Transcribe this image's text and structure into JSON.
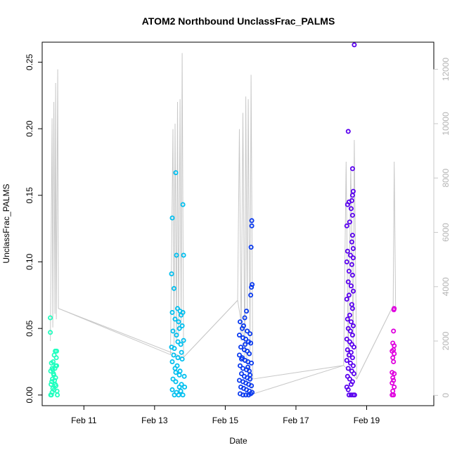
{
  "chart_data": {
    "type": "scatter",
    "title": "ATOM2 Northbound UnclassFrac_PALMS",
    "xlabel": "Date",
    "ylabel": "UnclassFrac_PALMS",
    "x_unit": "day (February 2017 calendar day)",
    "xlim": [
      9.82,
      20.9
    ],
    "ylim": [
      -0.008,
      0.265
    ],
    "xticks": [
      {
        "value": 11,
        "label": "Feb 11"
      },
      {
        "value": 13,
        "label": "Feb 13"
      },
      {
        "value": 15,
        "label": "Feb 15"
      },
      {
        "value": 17,
        "label": "Feb 17"
      },
      {
        "value": 19,
        "label": "Feb 19"
      }
    ],
    "yticks": [
      {
        "value": 0.0,
        "label": "0.00"
      },
      {
        "value": 0.05,
        "label": "0.05"
      },
      {
        "value": 0.1,
        "label": "0.10"
      },
      {
        "value": 0.15,
        "label": "0.15"
      },
      {
        "value": 0.2,
        "label": "0.20"
      },
      {
        "value": 0.25,
        "label": "0.25"
      }
    ],
    "secondary_y": {
      "lim": [
        -380,
        13000
      ],
      "ticks": [
        {
          "value": 0,
          "label": "0"
        },
        {
          "value": 2000,
          "label": "2000"
        },
        {
          "value": 4000,
          "label": "4000"
        },
        {
          "value": 6000,
          "label": "6000"
        },
        {
          "value": 8000,
          "label": "8000"
        },
        {
          "value": 10000,
          "label": "10000"
        },
        {
          "value": 12000,
          "label": "12000"
        }
      ],
      "color": "#c8c8c8"
    },
    "grid": false,
    "altitude_trace": [
      [
        10.05,
        2000
      ],
      [
        10.1,
        10200
      ],
      [
        10.12,
        2500
      ],
      [
        10.15,
        10800
      ],
      [
        10.18,
        3000
      ],
      [
        10.2,
        11500
      ],
      [
        10.22,
        2800
      ],
      [
        10.26,
        12000
      ],
      [
        10.28,
        3200
      ],
      [
        13.45,
        1500
      ],
      [
        13.52,
        9800
      ],
      [
        13.55,
        1800
      ],
      [
        13.58,
        10000
      ],
      [
        13.62,
        2000
      ],
      [
        13.65,
        10800
      ],
      [
        13.68,
        2200
      ],
      [
        13.72,
        10900
      ],
      [
        13.75,
        2500
      ],
      [
        13.78,
        12600
      ],
      [
        13.82,
        1400
      ],
      [
        15.35,
        3500
      ],
      [
        15.4,
        9800
      ],
      [
        15.45,
        2000
      ],
      [
        15.5,
        10400
      ],
      [
        15.55,
        1200
      ],
      [
        15.58,
        11000
      ],
      [
        15.62,
        3000
      ],
      [
        15.65,
        10900
      ],
      [
        15.7,
        1500
      ],
      [
        15.73,
        11800
      ],
      [
        15.78,
        600
      ],
      [
        18.35,
        1100
      ],
      [
        18.42,
        8600
      ],
      [
        18.48,
        1200
      ],
      [
        18.55,
        8400
      ],
      [
        18.62,
        1800
      ],
      [
        18.65,
        9400
      ],
      [
        18.72,
        600
      ],
      [
        19.75,
        3300
      ],
      [
        19.78,
        8600
      ],
      [
        19.82,
        3200
      ]
    ],
    "transit_lines": [
      [
        10.28,
        3200
      ],
      [
        13.82,
        1400
      ],
      [
        15.35,
        3500
      ],
      [
        15.78,
        50
      ],
      [
        18.35,
        1100
      ],
      [
        18.72,
        600
      ],
      [
        19.75,
        3300
      ]
    ],
    "series": [
      {
        "color": "#1fffbf",
        "points": [
          [
            10.05,
            0.058
          ],
          [
            10.05,
            0.047
          ],
          [
            10.08,
            0.0
          ],
          [
            10.1,
            0.002
          ],
          [
            10.12,
            0.005
          ],
          [
            10.07,
            0.008
          ],
          [
            10.09,
            0.01
          ],
          [
            10.11,
            0.012
          ],
          [
            10.15,
            0.015
          ],
          [
            10.06,
            0.018
          ],
          [
            10.18,
            0.02
          ],
          [
            10.2,
            0.022
          ],
          [
            10.13,
            0.025
          ],
          [
            10.22,
            0.028
          ],
          [
            10.16,
            0.03
          ],
          [
            10.19,
            0.033
          ],
          [
            10.23,
            0.033
          ],
          [
            10.1,
            0.02
          ],
          [
            10.14,
            0.016
          ],
          [
            10.17,
            0.011
          ],
          [
            10.21,
            0.007
          ],
          [
            10.24,
            0.003
          ],
          [
            10.08,
            0.024
          ],
          [
            10.12,
            0.019
          ],
          [
            10.25,
            0.0
          ],
          [
            10.2,
            0.013
          ],
          [
            10.16,
            0.004
          ],
          [
            10.23,
            0.022
          ],
          [
            10.06,
            0.0
          ],
          [
            10.19,
            0.008
          ]
        ]
      },
      {
        "color": "#00bfef",
        "points": [
          [
            13.5,
            0.133
          ],
          [
            13.6,
            0.167
          ],
          [
            13.8,
            0.143
          ],
          [
            13.62,
            0.105
          ],
          [
            13.82,
            0.105
          ],
          [
            13.48,
            0.091
          ],
          [
            13.55,
            0.08
          ],
          [
            13.5,
            0.062
          ],
          [
            13.65,
            0.065
          ],
          [
            13.72,
            0.063
          ],
          [
            13.58,
            0.057
          ],
          [
            13.68,
            0.055
          ],
          [
            13.75,
            0.06
          ],
          [
            13.8,
            0.062
          ],
          [
            13.52,
            0.048
          ],
          [
            13.62,
            0.045
          ],
          [
            13.7,
            0.05
          ],
          [
            13.78,
            0.052
          ],
          [
            13.48,
            0.036
          ],
          [
            13.56,
            0.035
          ],
          [
            13.66,
            0.04
          ],
          [
            13.74,
            0.038
          ],
          [
            13.82,
            0.041
          ],
          [
            13.5,
            0.025
          ],
          [
            13.58,
            0.02
          ],
          [
            13.64,
            0.022
          ],
          [
            13.72,
            0.018
          ],
          [
            13.78,
            0.027
          ],
          [
            13.52,
            0.012
          ],
          [
            13.6,
            0.01
          ],
          [
            13.7,
            0.015
          ],
          [
            13.76,
            0.008
          ],
          [
            13.84,
            0.014
          ],
          [
            13.5,
            0.004
          ],
          [
            13.56,
            0.0
          ],
          [
            13.62,
            0.002
          ],
          [
            13.68,
            0.0
          ],
          [
            13.74,
            0.003
          ],
          [
            13.8,
            0.0
          ],
          [
            13.85,
            0.006
          ],
          [
            13.54,
            0.03
          ],
          [
            13.66,
            0.028
          ],
          [
            13.76,
            0.032
          ],
          [
            13.6,
            0.017
          ],
          [
            13.7,
            0.006
          ]
        ]
      },
      {
        "color": "#0a3aef",
        "points": [
          [
            15.75,
            0.131
          ],
          [
            15.75,
            0.127
          ],
          [
            15.73,
            0.111
          ],
          [
            15.76,
            0.083
          ],
          [
            15.74,
            0.081
          ],
          [
            15.72,
            0.075
          ],
          [
            15.6,
            0.063
          ],
          [
            15.55,
            0.058
          ],
          [
            15.52,
            0.052
          ],
          [
            15.42,
            0.055
          ],
          [
            15.48,
            0.05
          ],
          [
            15.62,
            0.048
          ],
          [
            15.7,
            0.046
          ],
          [
            15.4,
            0.045
          ],
          [
            15.5,
            0.043
          ],
          [
            15.58,
            0.042
          ],
          [
            15.66,
            0.04
          ],
          [
            15.72,
            0.039
          ],
          [
            15.44,
            0.036
          ],
          [
            15.54,
            0.034
          ],
          [
            15.62,
            0.033
          ],
          [
            15.68,
            0.031
          ],
          [
            15.4,
            0.03
          ],
          [
            15.48,
            0.028
          ],
          [
            15.56,
            0.026
          ],
          [
            15.64,
            0.025
          ],
          [
            15.74,
            0.024
          ],
          [
            15.42,
            0.022
          ],
          [
            15.5,
            0.02
          ],
          [
            15.6,
            0.019
          ],
          [
            15.68,
            0.018
          ],
          [
            15.46,
            0.016
          ],
          [
            15.54,
            0.014
          ],
          [
            15.62,
            0.013
          ],
          [
            15.7,
            0.012
          ],
          [
            15.4,
            0.011
          ],
          [
            15.5,
            0.01
          ],
          [
            15.58,
            0.009
          ],
          [
            15.66,
            0.008
          ],
          [
            15.74,
            0.007
          ],
          [
            15.44,
            0.006
          ],
          [
            15.52,
            0.005
          ],
          [
            15.6,
            0.004
          ],
          [
            15.68,
            0.003
          ],
          [
            15.76,
            0.002
          ],
          [
            15.42,
            0.001
          ],
          [
            15.5,
            0.0
          ],
          [
            15.58,
            0.0
          ],
          [
            15.66,
            0.0
          ],
          [
            15.72,
            0.001
          ],
          [
            15.56,
            0.038
          ],
          [
            15.64,
            0.021
          ],
          [
            15.46,
            0.027
          ],
          [
            15.7,
            0.015
          ]
        ]
      },
      {
        "color": "#5a00ef",
        "points": [
          [
            18.65,
            0.263
          ],
          [
            18.48,
            0.198
          ],
          [
            18.6,
            0.17
          ],
          [
            18.62,
            0.153
          ],
          [
            18.6,
            0.15
          ],
          [
            18.58,
            0.146
          ],
          [
            18.5,
            0.145
          ],
          [
            18.46,
            0.143
          ],
          [
            18.56,
            0.14
          ],
          [
            18.6,
            0.135
          ],
          [
            18.52,
            0.13
          ],
          [
            18.44,
            0.127
          ],
          [
            18.6,
            0.12
          ],
          [
            18.58,
            0.115
          ],
          [
            18.62,
            0.11
          ],
          [
            18.46,
            0.108
          ],
          [
            18.54,
            0.105
          ],
          [
            18.62,
            0.103
          ],
          [
            18.44,
            0.1
          ],
          [
            18.58,
            0.098
          ],
          [
            18.5,
            0.093
          ],
          [
            18.6,
            0.09
          ],
          [
            18.48,
            0.085
          ],
          [
            18.56,
            0.082
          ],
          [
            18.62,
            0.078
          ],
          [
            18.5,
            0.075
          ],
          [
            18.44,
            0.072
          ],
          [
            18.58,
            0.068
          ],
          [
            18.6,
            0.065
          ],
          [
            18.52,
            0.06
          ],
          [
            18.46,
            0.057
          ],
          [
            18.56,
            0.055
          ],
          [
            18.62,
            0.052
          ],
          [
            18.48,
            0.05
          ],
          [
            18.54,
            0.048
          ],
          [
            18.6,
            0.045
          ],
          [
            18.44,
            0.042
          ],
          [
            18.52,
            0.04
          ],
          [
            18.58,
            0.038
          ],
          [
            18.64,
            0.036
          ],
          [
            18.46,
            0.034
          ],
          [
            18.56,
            0.032
          ],
          [
            18.5,
            0.03
          ],
          [
            18.6,
            0.028
          ],
          [
            18.44,
            0.026
          ],
          [
            18.54,
            0.024
          ],
          [
            18.62,
            0.022
          ],
          [
            18.48,
            0.02
          ],
          [
            18.58,
            0.018
          ],
          [
            18.64,
            0.016
          ],
          [
            18.46,
            0.014
          ],
          [
            18.52,
            0.012
          ],
          [
            18.6,
            0.01
          ],
          [
            18.56,
            0.008
          ],
          [
            18.44,
            0.006
          ],
          [
            18.5,
            0.0
          ],
          [
            18.56,
            0.0
          ],
          [
            18.62,
            0.0
          ],
          [
            18.66,
            0.0
          ],
          [
            18.48,
            0.004
          ]
        ]
      },
      {
        "color": "#df00df",
        "points": [
          [
            19.78,
            0.065
          ],
          [
            19.77,
            0.064
          ],
          [
            19.76,
            0.048
          ],
          [
            19.74,
            0.039
          ],
          [
            19.78,
            0.037
          ],
          [
            19.76,
            0.034
          ],
          [
            19.72,
            0.033
          ],
          [
            19.78,
            0.031
          ],
          [
            19.74,
            0.028
          ],
          [
            19.76,
            0.025
          ],
          [
            19.72,
            0.017
          ],
          [
            19.78,
            0.016
          ],
          [
            19.74,
            0.013
          ],
          [
            19.76,
            0.011
          ],
          [
            19.72,
            0.009
          ],
          [
            19.78,
            0.006
          ],
          [
            19.74,
            0.003
          ],
          [
            19.76,
            0.0
          ],
          [
            19.72,
            0.0
          ]
        ]
      }
    ]
  }
}
